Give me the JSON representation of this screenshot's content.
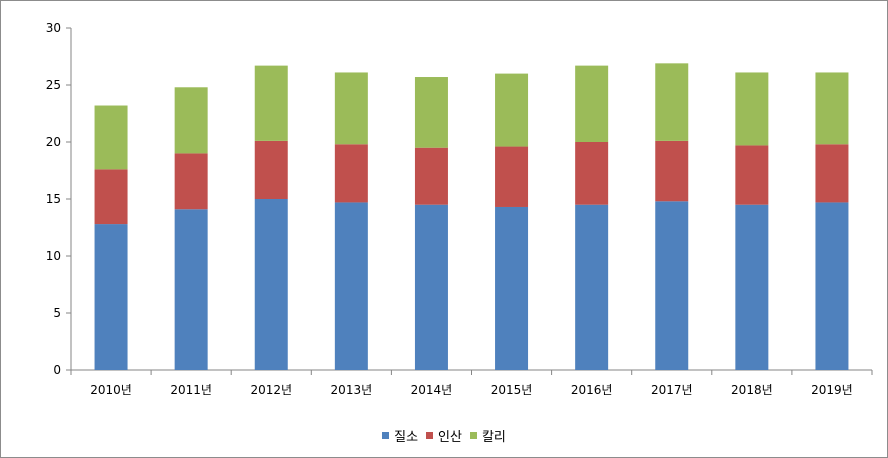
{
  "chart_data": {
    "type": "bar",
    "stacked": true,
    "categories": [
      "2010년",
      "2011년",
      "2012년",
      "2013년",
      "2014년",
      "2015년",
      "2016년",
      "2017년",
      "2018년",
      "2019년"
    ],
    "series": [
      {
        "name": "질소",
        "color": "#4f81bd",
        "values": [
          12.8,
          14.1,
          15.0,
          14.7,
          14.5,
          14.3,
          14.5,
          14.8,
          14.5,
          14.7
        ]
      },
      {
        "name": "인산",
        "color": "#c0504d",
        "values": [
          4.8,
          4.9,
          5.1,
          5.1,
          5.0,
          5.3,
          5.5,
          5.3,
          5.2,
          5.1
        ]
      },
      {
        "name": "칼리",
        "color": "#9bbb59",
        "values": [
          5.6,
          5.8,
          6.6,
          6.3,
          6.2,
          6.4,
          6.7,
          6.8,
          6.4,
          6.3
        ]
      }
    ],
    "yticks": [
      "0",
      "5",
      "10",
      "15",
      "20",
      "25",
      "30"
    ],
    "ylim": [
      0,
      30
    ],
    "title": "",
    "xlabel": "",
    "ylabel": "",
    "grid": false,
    "legend_position": "bottom"
  }
}
